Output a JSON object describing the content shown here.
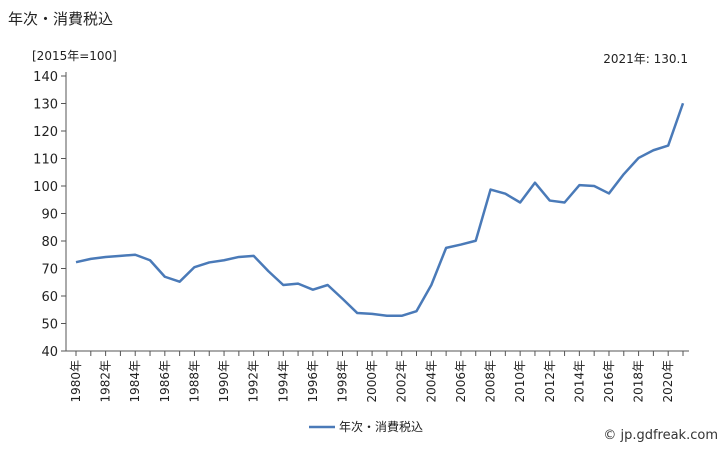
{
  "header": {
    "title": "年次・消費税込",
    "unit_label": "[2015年=100]",
    "note": "2021年: 130.1"
  },
  "footer": {
    "credit": "© jp.gdfreak.com"
  },
  "colors": {
    "line": "#4a7ab8",
    "axis": "#555555"
  },
  "chart_data": {
    "type": "line",
    "x_tick_labels": [
      "1980年",
      "1982年",
      "1984年",
      "1986年",
      "1988年",
      "1990年",
      "1992年",
      "1994年",
      "1996年",
      "1998年",
      "2000年",
      "2002年",
      "2004年",
      "2006年",
      "2008年",
      "2010年",
      "2012年",
      "2014年",
      "2016年",
      "2018年",
      "2020年"
    ],
    "y_ticks": [
      40,
      50,
      60,
      70,
      80,
      90,
      100,
      110,
      120,
      130,
      140
    ],
    "ylim": [
      40,
      140
    ],
    "xlim": [
      1980,
      2021
    ],
    "grid": false,
    "legend_position": "bottom",
    "series": [
      {
        "name": "年次・消費税込",
        "x": [
          1980,
          1981,
          1982,
          1983,
          1984,
          1985,
          1986,
          1987,
          1988,
          1989,
          1990,
          1991,
          1992,
          1993,
          1994,
          1995,
          1996,
          1997,
          1998,
          1999,
          2000,
          2001,
          2002,
          2003,
          2004,
          2005,
          2006,
          2007,
          2008,
          2009,
          2010,
          2011,
          2012,
          2013,
          2014,
          2015,
          2016,
          2017,
          2018,
          2019,
          2020,
          2021
        ],
        "values": [
          72.3,
          73.5,
          74.2,
          74.6,
          75.0,
          73.0,
          67.0,
          65.2,
          70.5,
          72.2,
          73.0,
          74.2,
          74.6,
          69.0,
          64.0,
          64.5,
          62.3,
          64.0,
          59.0,
          53.8,
          53.5,
          52.8,
          52.8,
          54.5,
          64.0,
          77.5,
          78.7,
          80.1,
          98.7,
          97.2,
          94.0,
          101.2,
          94.7,
          94.0,
          100.3,
          100.0,
          97.3,
          104.3,
          110.2,
          113.0,
          114.7,
          130.1
        ]
      }
    ]
  }
}
